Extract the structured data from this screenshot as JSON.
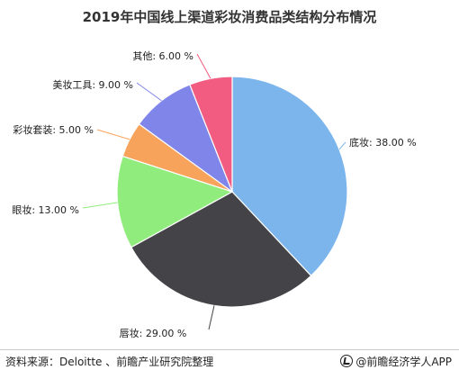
{
  "chart_data": {
    "type": "pie",
    "title": "2019年中国线上渠道彩妆消费品类结构分布情况",
    "categories": [
      "底妆",
      "唇妆",
      "眼妆",
      "彩妆套装",
      "美妆工具",
      "其他"
    ],
    "values": [
      38.0,
      29.0,
      13.0,
      5.0,
      9.0,
      6.0
    ],
    "labels": [
      "底妆: 38.00 %",
      "唇妆: 29.00 %",
      "眼妆: 13.00 %",
      "彩妆套装: 5.00 %",
      "美妆工具: 9.00 %",
      "其他: 6.00 %"
    ],
    "colors": [
      "#7cb5ec",
      "#434348",
      "#90ed7d",
      "#f7a35c",
      "#8085e9",
      "#f15c80"
    ],
    "start_angle_deg": 0,
    "direction": "clockwise",
    "legend": "none"
  },
  "footer": {
    "source": "资料来源：Deloitte 、前瞻产业研究院整理",
    "brand": "@前瞻经济学人APP"
  },
  "watermark": "前瞻产业研究院"
}
